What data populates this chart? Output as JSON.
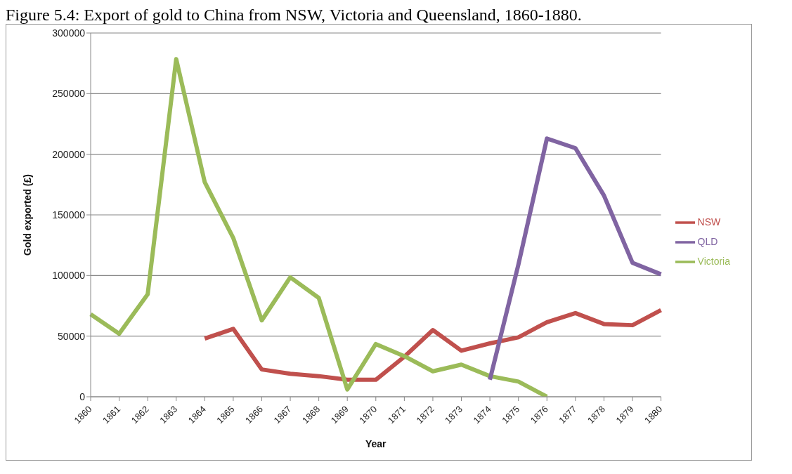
{
  "chart_data": {
    "type": "line",
    "title": "Figure 5.4: Export of gold to China from NSW, Victoria and Queensland, 1860-1880.",
    "xlabel": "Year",
    "ylabel": "Gold exported (£)",
    "categories": [
      "1860",
      "1861",
      "1862",
      "1863",
      "1864",
      "1865",
      "1866",
      "1867",
      "1868",
      "1869",
      "1870",
      "1871",
      "1872",
      "1873",
      "1874",
      "1875",
      "1876",
      "1877",
      "1878",
      "1879",
      "1880"
    ],
    "series": [
      {
        "name": "NSW",
        "color": "#c0504d",
        "values": [
          null,
          null,
          null,
          null,
          48000,
          56000,
          22500,
          19000,
          17000,
          14000,
          14000,
          33000,
          55000,
          38000,
          44000,
          49000,
          61500,
          69000,
          60000,
          59000,
          71500
        ]
      },
      {
        "name": "Victoria",
        "color": "#9bbb59",
        "values": [
          68000,
          52000,
          84500,
          278500,
          177000,
          131000,
          63000,
          98500,
          81500,
          6000,
          43500,
          33500,
          21000,
          26500,
          17000,
          12500,
          0,
          null,
          null,
          null,
          null
        ]
      },
      {
        "name": "QLD",
        "color": "#8064a2",
        "values": [
          null,
          null,
          null,
          null,
          null,
          null,
          null,
          null,
          null,
          null,
          null,
          null,
          null,
          null,
          14000,
          109000,
          213000,
          205000,
          166000,
          110500,
          101000
        ]
      }
    ],
    "ylim": [
      0,
      300000
    ],
    "yticks": [
      0,
      50000,
      100000,
      150000,
      200000,
      250000,
      300000
    ],
    "grid": "y",
    "legend": "right",
    "marker": "none",
    "line_style": "solid"
  }
}
